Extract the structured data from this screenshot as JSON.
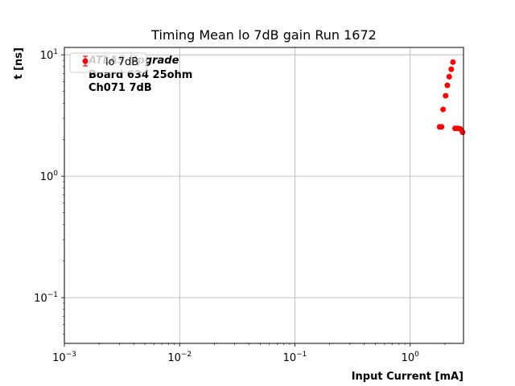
{
  "chart_data": {
    "type": "scatter",
    "title": "Timing Mean lo 7dB gain Run 1672",
    "xlabel": "Input Current [mA]",
    "ylabel": "t [ns]",
    "xscale": "log",
    "yscale": "log",
    "xlim": [
      0.001,
      2.9
    ],
    "ylim": [
      0.042,
      11.5
    ],
    "x_ticks": [
      {
        "value": 0.001,
        "base": "10",
        "exp": "−3"
      },
      {
        "value": 0.01,
        "base": "10",
        "exp": "−2"
      },
      {
        "value": 0.1,
        "base": "10",
        "exp": "−1"
      },
      {
        "value": 1,
        "base": "10",
        "exp": "0"
      }
    ],
    "y_ticks": [
      {
        "value": 0.1,
        "base": "10",
        "exp": "−1"
      },
      {
        "value": 1,
        "base": "10",
        "exp": "0"
      },
      {
        "value": 10,
        "base": "10",
        "exp": "1"
      }
    ],
    "grid": true,
    "legend_position": "top-left",
    "series": [
      {
        "name": "lo 7dB",
        "color": "#ff0000",
        "marker": "circle",
        "points": [
          {
            "x": 1.8,
            "y": 2.55
          },
          {
            "x": 1.87,
            "y": 2.55
          },
          {
            "x": 1.93,
            "y": 3.55
          },
          {
            "x": 2.03,
            "y": 4.6
          },
          {
            "x": 2.1,
            "y": 5.6
          },
          {
            "x": 2.18,
            "y": 6.6
          },
          {
            "x": 2.27,
            "y": 7.6
          },
          {
            "x": 2.35,
            "y": 8.7
          },
          {
            "x": 2.45,
            "y": 2.48
          },
          {
            "x": 2.58,
            "y": 2.48
          },
          {
            "x": 2.72,
            "y": 2.45
          },
          {
            "x": 2.85,
            "y": 2.3
          }
        ]
      }
    ],
    "annotations": [
      "ATLAS Upgrade",
      "Board 634 25ohm",
      "Ch071 7dB"
    ]
  }
}
